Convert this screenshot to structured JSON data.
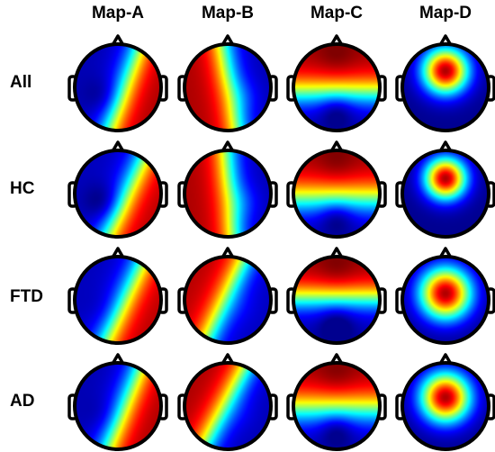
{
  "figure": {
    "columns": [
      "Map-A",
      "Map-B",
      "Map-C",
      "Map-D"
    ],
    "rows": [
      "All",
      "HC",
      "FTD",
      "AD"
    ]
  },
  "colors": {
    "colormap": [
      "#00008f",
      "#0000ff",
      "#0080ff",
      "#00ffff",
      "#80ff80",
      "#ffff00",
      "#ff8000",
      "#ff0000",
      "#800000"
    ],
    "outline": "#000000"
  },
  "maps": [
    {
      "row": "All",
      "column": "Map-A",
      "pattern": "diagonal-bands",
      "angle_deg": 20,
      "shift": 0.15,
      "sign": 1,
      "amplitude": 0.92,
      "blob": 0.3
    },
    {
      "row": "All",
      "column": "Map-B",
      "pattern": "diagonal-bands",
      "angle_deg": -10,
      "shift": 0.05,
      "sign": -1,
      "amplitude": 0.92,
      "blob": 0.25
    },
    {
      "row": "All",
      "column": "Map-C",
      "pattern": "front-back",
      "front_center": 0.1,
      "sharpness": 2.2,
      "amplitude": 0.95
    },
    {
      "row": "All",
      "column": "Map-D",
      "pattern": "central-focus",
      "focus_y": -0.38,
      "spread": 0.55,
      "amplitude": 0.95
    },
    {
      "row": "HC",
      "column": "Map-A",
      "pattern": "diagonal-bands",
      "angle_deg": 25,
      "shift": 0.2,
      "sign": 1,
      "amplitude": 0.9,
      "blob": 0.45
    },
    {
      "row": "HC",
      "column": "Map-B",
      "pattern": "diagonal-bands",
      "angle_deg": -5,
      "shift": 0.05,
      "sign": -1,
      "amplitude": 0.92,
      "blob": 0.3
    },
    {
      "row": "HC",
      "column": "Map-C",
      "pattern": "front-back",
      "front_center": 0.1,
      "sharpness": 2.0,
      "amplitude": 0.95
    },
    {
      "row": "HC",
      "column": "Map-D",
      "pattern": "central-focus",
      "focus_y": -0.35,
      "spread": 0.5,
      "amplitude": 0.95
    },
    {
      "row": "FTD",
      "column": "Map-A",
      "pattern": "diagonal-bands",
      "angle_deg": 25,
      "shift": 0.15,
      "sign": 1,
      "amplitude": 0.9,
      "blob": 0.1
    },
    {
      "row": "FTD",
      "column": "Map-B",
      "pattern": "diagonal-bands",
      "angle_deg": 25,
      "shift": -0.05,
      "sign": -1,
      "amplitude": 0.9,
      "blob": 0.1
    },
    {
      "row": "FTD",
      "column": "Map-C",
      "pattern": "front-back",
      "front_center": -0.05,
      "sharpness": 2.4,
      "amplitude": 0.95
    },
    {
      "row": "FTD",
      "column": "Map-D",
      "pattern": "central-focus",
      "focus_y": -0.15,
      "spread": 0.62,
      "amplitude": 0.95
    },
    {
      "row": "AD",
      "column": "Map-A",
      "pattern": "diagonal-bands",
      "angle_deg": 22,
      "shift": 0.15,
      "sign": 1,
      "amplitude": 0.92,
      "blob": 0.15
    },
    {
      "row": "AD",
      "column": "Map-B",
      "pattern": "diagonal-bands",
      "angle_deg": 28,
      "shift": -0.05,
      "sign": -1,
      "amplitude": 0.92,
      "blob": 0.1
    },
    {
      "row": "AD",
      "column": "Map-C",
      "pattern": "front-back",
      "front_center": 0.05,
      "sharpness": 2.0,
      "amplitude": 0.95
    },
    {
      "row": "AD",
      "column": "Map-D",
      "pattern": "central-focus",
      "focus_y": -0.2,
      "spread": 0.6,
      "amplitude": 0.95
    }
  ]
}
